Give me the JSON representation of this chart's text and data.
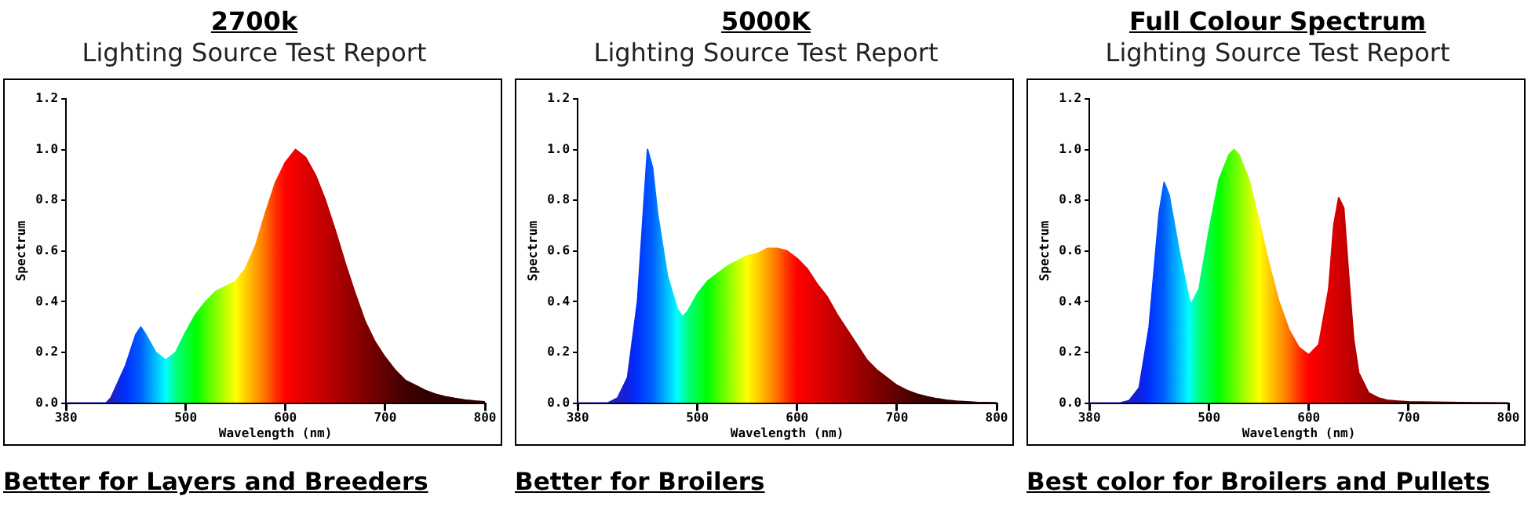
{
  "chart_data": [
    {
      "type": "area",
      "title": "2700k",
      "subtitle": "Lighting Source Test Report",
      "xlabel": "Wavelength (nm)",
      "ylabel": "Spectrum",
      "annotations": [
        "Better for Layers and Breeders"
      ],
      "xlim": [
        380,
        800
      ],
      "xticks": [
        380,
        500,
        600,
        700,
        800
      ],
      "ylim": [
        0,
        1.2
      ],
      "yticks": [
        {
          "value": 0,
          "label": "0.0"
        },
        {
          "value": 0.2,
          "label": "0.2"
        },
        {
          "value": 0.4,
          "label": "0.4"
        },
        {
          "value": 0.6,
          "label": "0.6"
        },
        {
          "value": 0.8,
          "label": "0.8"
        },
        {
          "value": 1,
          "label": "1.0"
        },
        {
          "value": 1.2,
          "label": "1.2"
        }
      ],
      "grid": false,
      "legend": false,
      "series": [
        {
          "x": [
            380,
            400,
            420,
            425,
            440,
            450,
            455,
            460,
            470,
            480,
            490,
            500,
            510,
            520,
            530,
            540,
            550,
            560,
            570,
            580,
            590,
            600,
            610,
            620,
            630,
            640,
            650,
            660,
            670,
            680,
            690,
            700,
            710,
            720,
            730,
            740,
            750,
            760,
            770,
            780,
            790,
            800
          ],
          "values": [
            0,
            0,
            0,
            0.02,
            0.15,
            0.27,
            0.3,
            0.27,
            0.2,
            0.17,
            0.2,
            0.28,
            0.35,
            0.4,
            0.44,
            0.46,
            0.48,
            0.53,
            0.62,
            0.75,
            0.87,
            0.95,
            1.0,
            0.97,
            0.9,
            0.8,
            0.68,
            0.55,
            0.43,
            0.32,
            0.24,
            0.18,
            0.13,
            0.09,
            0.07,
            0.05,
            0.035,
            0.025,
            0.018,
            0.012,
            0.008,
            0.005
          ],
          "colors": [
            "#2020c0",
            "#2020c0",
            "#2020c0",
            "#2020c0",
            "#0030ff",
            "#0050ff",
            "#0060ff",
            "#0080ff",
            "#00c0ff",
            "#00ffff",
            "#00ff80",
            "#00ff40",
            "#00ff00",
            "#40ff00",
            "#80ff00",
            "#c0ff00",
            "#ffff00",
            "#ffd000",
            "#ffa000",
            "#ff7000",
            "#ff3000",
            "#ff0000",
            "#f00000",
            "#e00000",
            "#d00000",
            "#c00000",
            "#b00000",
            "#a00000",
            "#900000",
            "#800000",
            "#700000",
            "#600000",
            "#500000",
            "#400000",
            "#380000",
            "#300000",
            "#300000",
            "#300000",
            "#300000",
            "#300000",
            "#300000",
            "#300000"
          ]
        }
      ]
    },
    {
      "type": "area",
      "title": "5000K",
      "subtitle": "Lighting Source Test Report",
      "xlabel": "Wavelength (nm)",
      "ylabel": "Spectrum",
      "annotations": [
        "Better for Broilers"
      ],
      "xlim": [
        380,
        800
      ],
      "xticks": [
        380,
        500,
        600,
        700,
        800
      ],
      "ylim": [
        0,
        1.2
      ],
      "yticks": [
        {
          "value": 0,
          "label": "0.0"
        },
        {
          "value": 0.2,
          "label": "0.2"
        },
        {
          "value": 0.4,
          "label": "0.4"
        },
        {
          "value": 0.6,
          "label": "0.6"
        },
        {
          "value": 0.8,
          "label": "0.8"
        },
        {
          "value": 1,
          "label": "1.0"
        },
        {
          "value": 1.2,
          "label": "1.2"
        }
      ],
      "grid": false,
      "legend": false,
      "series": [
        {
          "x": [
            380,
            400,
            410,
            420,
            430,
            440,
            445,
            450,
            455,
            460,
            470,
            480,
            485,
            490,
            500,
            510,
            520,
            530,
            540,
            550,
            560,
            570,
            580,
            590,
            600,
            610,
            620,
            630,
            640,
            650,
            660,
            670,
            680,
            690,
            700,
            710,
            720,
            730,
            740,
            750,
            760,
            770,
            780,
            790,
            800
          ],
          "values": [
            0,
            0,
            0,
            0.02,
            0.1,
            0.4,
            0.7,
            1.0,
            0.93,
            0.75,
            0.5,
            0.37,
            0.34,
            0.36,
            0.43,
            0.48,
            0.51,
            0.54,
            0.56,
            0.58,
            0.59,
            0.61,
            0.61,
            0.6,
            0.57,
            0.53,
            0.47,
            0.42,
            0.35,
            0.29,
            0.23,
            0.17,
            0.13,
            0.1,
            0.07,
            0.05,
            0.035,
            0.025,
            0.017,
            0.011,
            0.007,
            0.005,
            0.003,
            0.002,
            0.001
          ],
          "colors": [
            "#2020c0",
            "#2020c0",
            "#2020c0",
            "#2020c0",
            "#1020e0",
            "#0030ff",
            "#0040ff",
            "#0050ff",
            "#0060ff",
            "#0080ff",
            "#00c0ff",
            "#00ffff",
            "#00ffc0",
            "#00ff80",
            "#00ff40",
            "#00ff00",
            "#40ff00",
            "#80ff00",
            "#c0ff00",
            "#ffff00",
            "#ffd000",
            "#ffa000",
            "#ff7000",
            "#ff3000",
            "#ff0000",
            "#f00000",
            "#e00000",
            "#d00000",
            "#c00000",
            "#b00000",
            "#a00000",
            "#900000",
            "#800000",
            "#700000",
            "#600000",
            "#500000",
            "#400000",
            "#380000",
            "#300000",
            "#300000",
            "#300000",
            "#300000",
            "#300000",
            "#300000",
            "#300000"
          ]
        }
      ]
    },
    {
      "type": "area",
      "title": "Full Colour Spectrum",
      "subtitle": "Lighting Source Test Report",
      "xlabel": "Wavelength (nm)",
      "ylabel": "Spectrum",
      "annotations": [
        "Best color for Broilers and Pullets"
      ],
      "xlim": [
        380,
        800
      ],
      "xticks": [
        380,
        500,
        600,
        700,
        800
      ],
      "ylim": [
        0,
        1.2
      ],
      "yticks": [
        {
          "value": 0,
          "label": "0.0"
        },
        {
          "value": 0.2,
          "label": "0.2"
        },
        {
          "value": 0.4,
          "label": "0.4"
        },
        {
          "value": 0.6,
          "label": "0.6"
        },
        {
          "value": 0.8,
          "label": "0.8"
        },
        {
          "value": 1,
          "label": "1.0"
        },
        {
          "value": 1.2,
          "label": "1.2"
        }
      ],
      "grid": false,
      "legend": false,
      "series": [
        {
          "x": [
            380,
            400,
            410,
            420,
            430,
            440,
            450,
            455,
            460,
            470,
            480,
            482,
            490,
            500,
            510,
            520,
            525,
            530,
            540,
            550,
            560,
            570,
            580,
            590,
            600,
            610,
            620,
            625,
            630,
            635,
            640,
            645,
            650,
            660,
            670,
            680,
            700,
            750,
            800
          ],
          "values": [
            0,
            0,
            0,
            0.01,
            0.06,
            0.3,
            0.75,
            0.87,
            0.82,
            0.6,
            0.41,
            0.39,
            0.45,
            0.68,
            0.88,
            0.98,
            1.0,
            0.98,
            0.88,
            0.72,
            0.55,
            0.4,
            0.29,
            0.22,
            0.19,
            0.23,
            0.45,
            0.7,
            0.81,
            0.77,
            0.5,
            0.25,
            0.12,
            0.04,
            0.02,
            0.01,
            0.005,
            0.002,
            0
          ],
          "colors": [
            "#2020c0",
            "#2020c0",
            "#2020c0",
            "#2020c0",
            "#1020e0",
            "#0030ff",
            "#0050ff",
            "#0060ff",
            "#0080ff",
            "#00c0ff",
            "#00ffff",
            "#00ffe0",
            "#00ff80",
            "#00ff40",
            "#00ff00",
            "#40ff00",
            "#60ff00",
            "#80ff00",
            "#c0ff00",
            "#ffff00",
            "#ffd000",
            "#ffa000",
            "#ff7000",
            "#ff3000",
            "#ff0000",
            "#f00000",
            "#e00000",
            "#d80000",
            "#d00000",
            "#c80000",
            "#c00000",
            "#b80000",
            "#b00000",
            "#a00000",
            "#900000",
            "#800000",
            "#600000",
            "#300000",
            "#300000"
          ]
        }
      ]
    }
  ]
}
